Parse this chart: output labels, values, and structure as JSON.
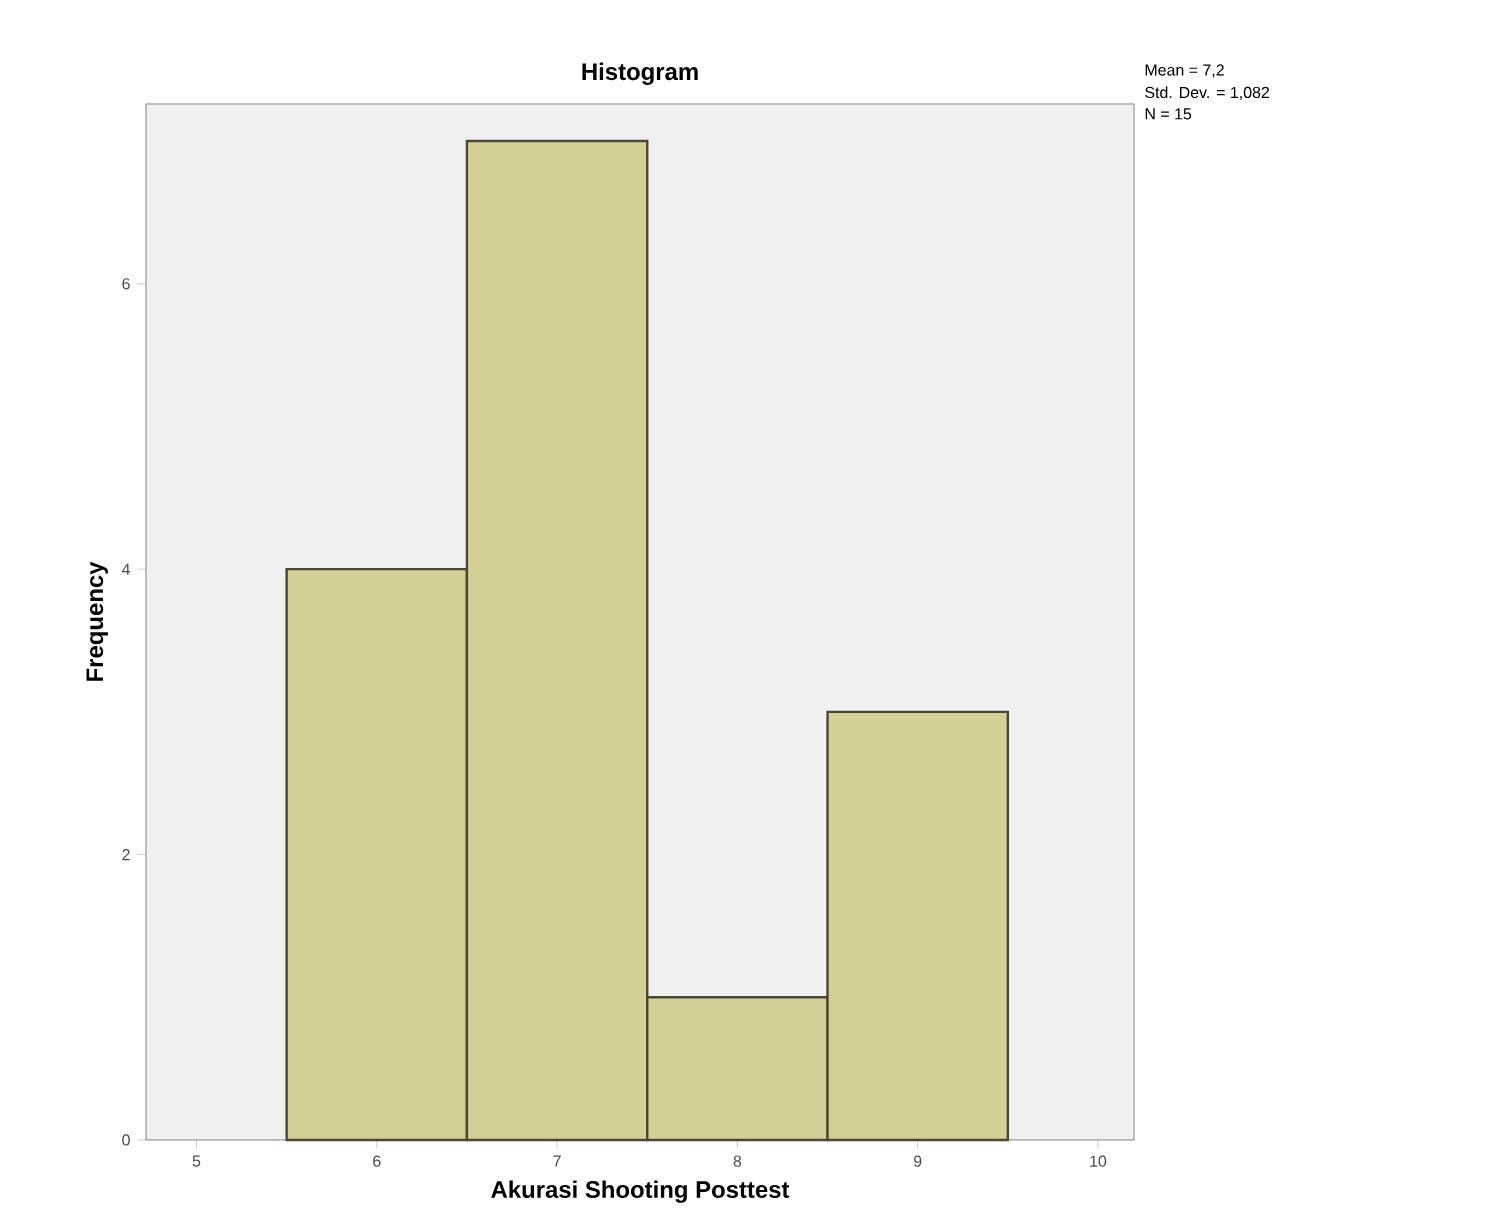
{
  "chart_data": {
    "type": "histogram",
    "title": "Histogram",
    "xlabel": "Akurasi Shooting Posttest",
    "ylabel": "Frequency",
    "bins": [
      5.5,
      6.5,
      7.5,
      8.5,
      9.5
    ],
    "values": [
      4,
      7,
      1,
      3
    ],
    "color": "#d3cf97",
    "xlim": [
      4.72,
      10.2
    ],
    "ylim": [
      0,
      7.26
    ],
    "xticks": [
      5,
      6,
      7,
      8,
      9,
      10
    ],
    "yticks": [
      0,
      2,
      4,
      6
    ],
    "annotations": [
      "Mean = 7,2",
      "Std. Dev. = 1,082",
      "N = 15"
    ]
  }
}
